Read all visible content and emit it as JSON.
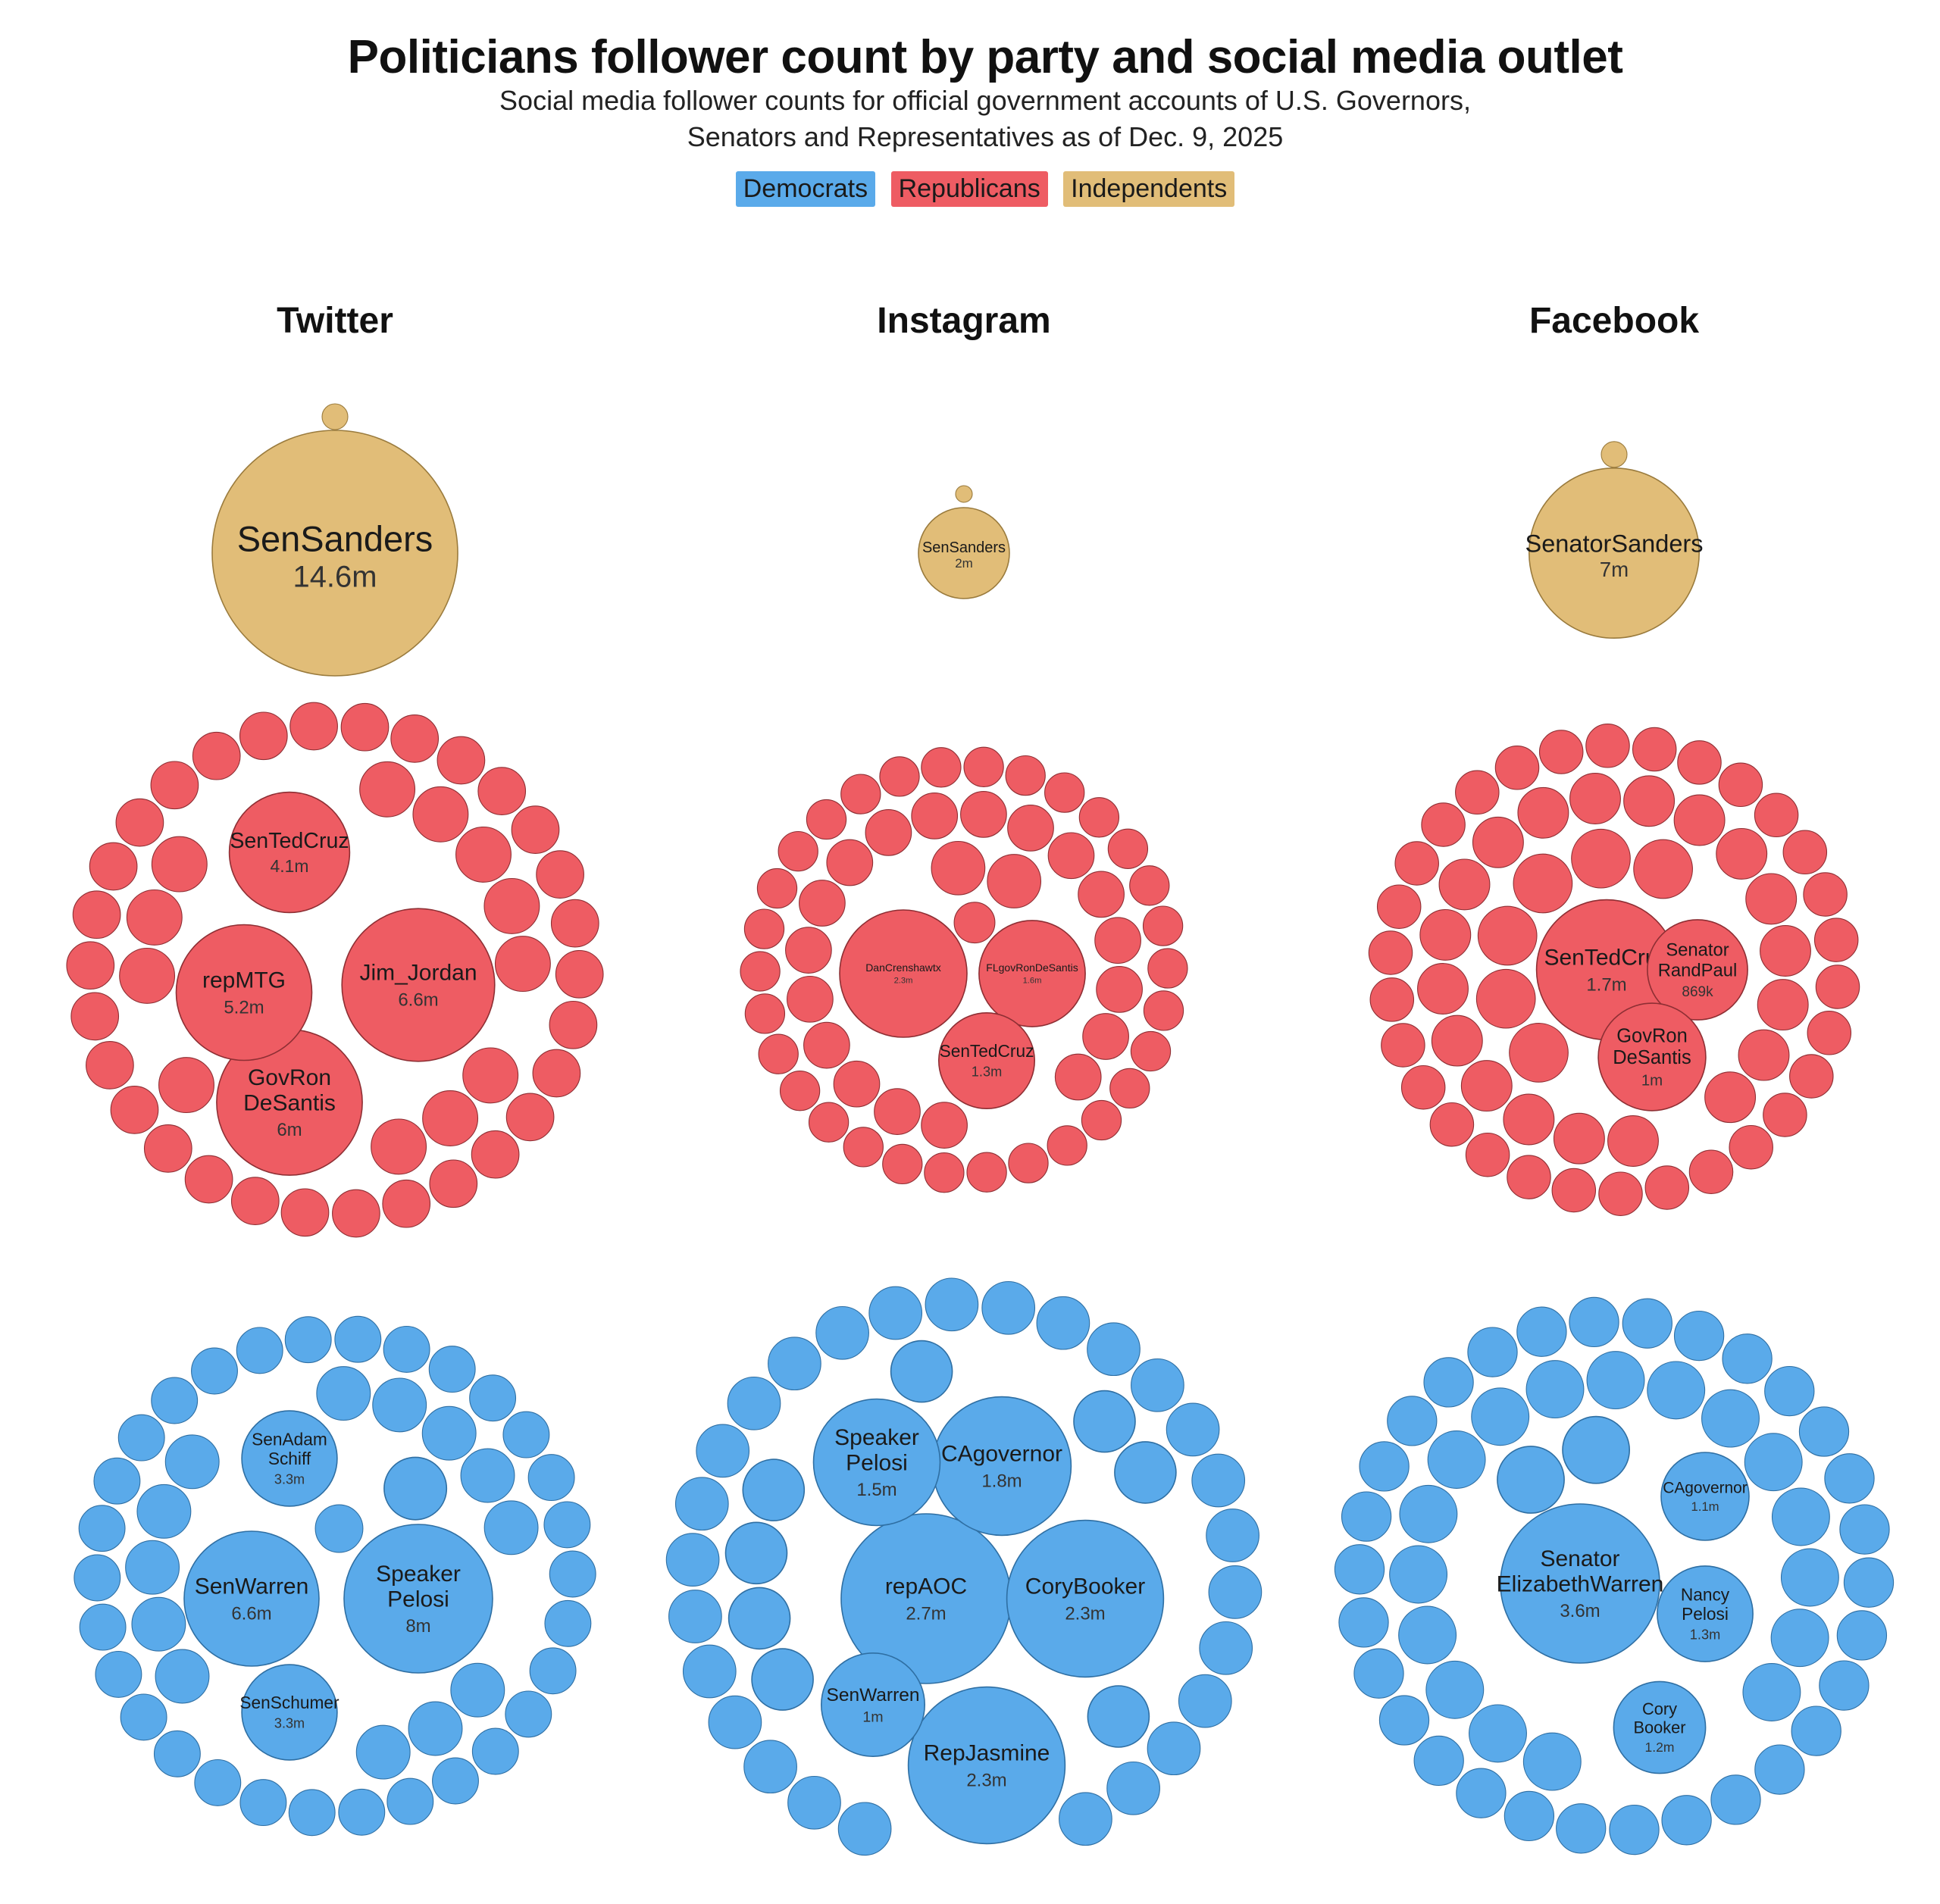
{
  "title": "Politicians follower count by party and social media outlet",
  "subtitle_line1": "Social media follower counts for official government accounts of U.S. Governors,",
  "subtitle_line2": "Senators  and Representatives as of Dec. 9, 2025",
  "colors": {
    "Democrats": "#5aaaea",
    "Republicans": "#ee5c63",
    "Independents": "#e1bd78",
    "stroke_Democrats": "#2f6fa3",
    "stroke_Republicans": "#8e2f34",
    "stroke_Independents": "#9a7b3d"
  },
  "legend": [
    {
      "label": "Democrats",
      "party": "Democrats"
    },
    {
      "label": "Republicans",
      "party": "Republicans"
    },
    {
      "label": "Independents",
      "party": "Independents"
    }
  ],
  "columns": [
    "Twitter",
    "Instagram",
    "Facebook"
  ],
  "chart_data": {
    "type": "packed-bubble",
    "title": "Politicians follower count by party and social media outlet",
    "groups": [
      {
        "platform": "Twitter",
        "party": "Independents",
        "labeled": [
          {
            "name": "SenSanders",
            "value_label": "14.6m",
            "value": 14.6
          }
        ],
        "unlabeled_count": 1
      },
      {
        "platform": "Instagram",
        "party": "Independents",
        "labeled": [
          {
            "name": "SenSanders",
            "value_label": "2m",
            "value": 2.0
          }
        ],
        "unlabeled_count": 1
      },
      {
        "platform": "Facebook",
        "party": "Independents",
        "labeled": [
          {
            "name": "SenatorSanders",
            "value_label": "7m",
            "value": 7.0
          }
        ],
        "unlabeled_count": 1
      },
      {
        "platform": "Twitter",
        "party": "Republicans",
        "labeled": [
          {
            "name": "Jim_Jordan",
            "value_label": "6.6m",
            "value": 6.6
          },
          {
            "name": "GovRon DeSantis",
            "value_label": "6m",
            "value": 6.0
          },
          {
            "name": "repMTG",
            "value_label": "5.2m",
            "value": 5.2
          },
          {
            "name": "SenTedCruz",
            "value_label": "4.1m",
            "value": 4.1
          }
        ],
        "unlabeled_count": 260
      },
      {
        "platform": "Instagram",
        "party": "Republicans",
        "labeled": [
          {
            "name": "DanCrenshawtx",
            "value_label": "2.3m",
            "value": 2.3
          },
          {
            "name": "FLgovRonDeSantis",
            "value_label": "1.6m",
            "value": 1.6
          },
          {
            "name": "SenTedCruz",
            "value_label": "1.3m",
            "value": 1.3
          }
        ],
        "unlabeled_count": 260
      },
      {
        "platform": "Facebook",
        "party": "Republicans",
        "labeled": [
          {
            "name": "SenTedCruz",
            "value_label": "1.7m",
            "value": 1.7
          },
          {
            "name": "Senator RandPaul",
            "value_label": "869k",
            "value": 0.869
          },
          {
            "name": "GovRon DeSantis",
            "value_label": "1m",
            "value": 1.0
          }
        ],
        "unlabeled_count": 260
      },
      {
        "platform": "Twitter",
        "party": "Democrats",
        "labeled": [
          {
            "name": "Speaker Pelosi",
            "value_label": "8m",
            "value": 8.0
          },
          {
            "name": "SenWarren",
            "value_label": "6.6m",
            "value": 6.6
          },
          {
            "name": "SenAdam Schiff",
            "value_label": "3.3m",
            "value": 3.3
          },
          {
            "name": "SenSchumer",
            "value_label": "3.3m",
            "value": 3.3
          }
        ],
        "unlabeled_count": 240
      },
      {
        "platform": "Instagram",
        "party": "Democrats",
        "labeled": [
          {
            "name": "repAOC",
            "value_label": "2.7m",
            "value": 2.7
          },
          {
            "name": "CoryBooker",
            "value_label": "2.3m",
            "value": 2.3
          },
          {
            "name": "RepJasmine",
            "value_label": "2.3m",
            "value": 2.3
          },
          {
            "name": "CAgovernor",
            "value_label": "1.8m",
            "value": 1.8
          },
          {
            "name": "Speaker Pelosi",
            "value_label": "1.5m",
            "value": 1.5
          },
          {
            "name": "SenWarren",
            "value_label": "1m",
            "value": 1.0
          }
        ],
        "unlabeled_count": 240
      },
      {
        "platform": "Facebook",
        "party": "Democrats",
        "labeled": [
          {
            "name": "Senator ElizabethWarren",
            "value_label": "3.6m",
            "value": 3.6
          },
          {
            "name": "Nancy Pelosi",
            "value_label": "1.3m",
            "value": 1.3
          },
          {
            "name": "Cory Booker",
            "value_label": "1.2m",
            "value": 1.2
          },
          {
            "name": "CAgovernor",
            "value_label": "1.1m",
            "value": 1.1
          }
        ],
        "unlabeled_count": 240
      }
    ]
  }
}
